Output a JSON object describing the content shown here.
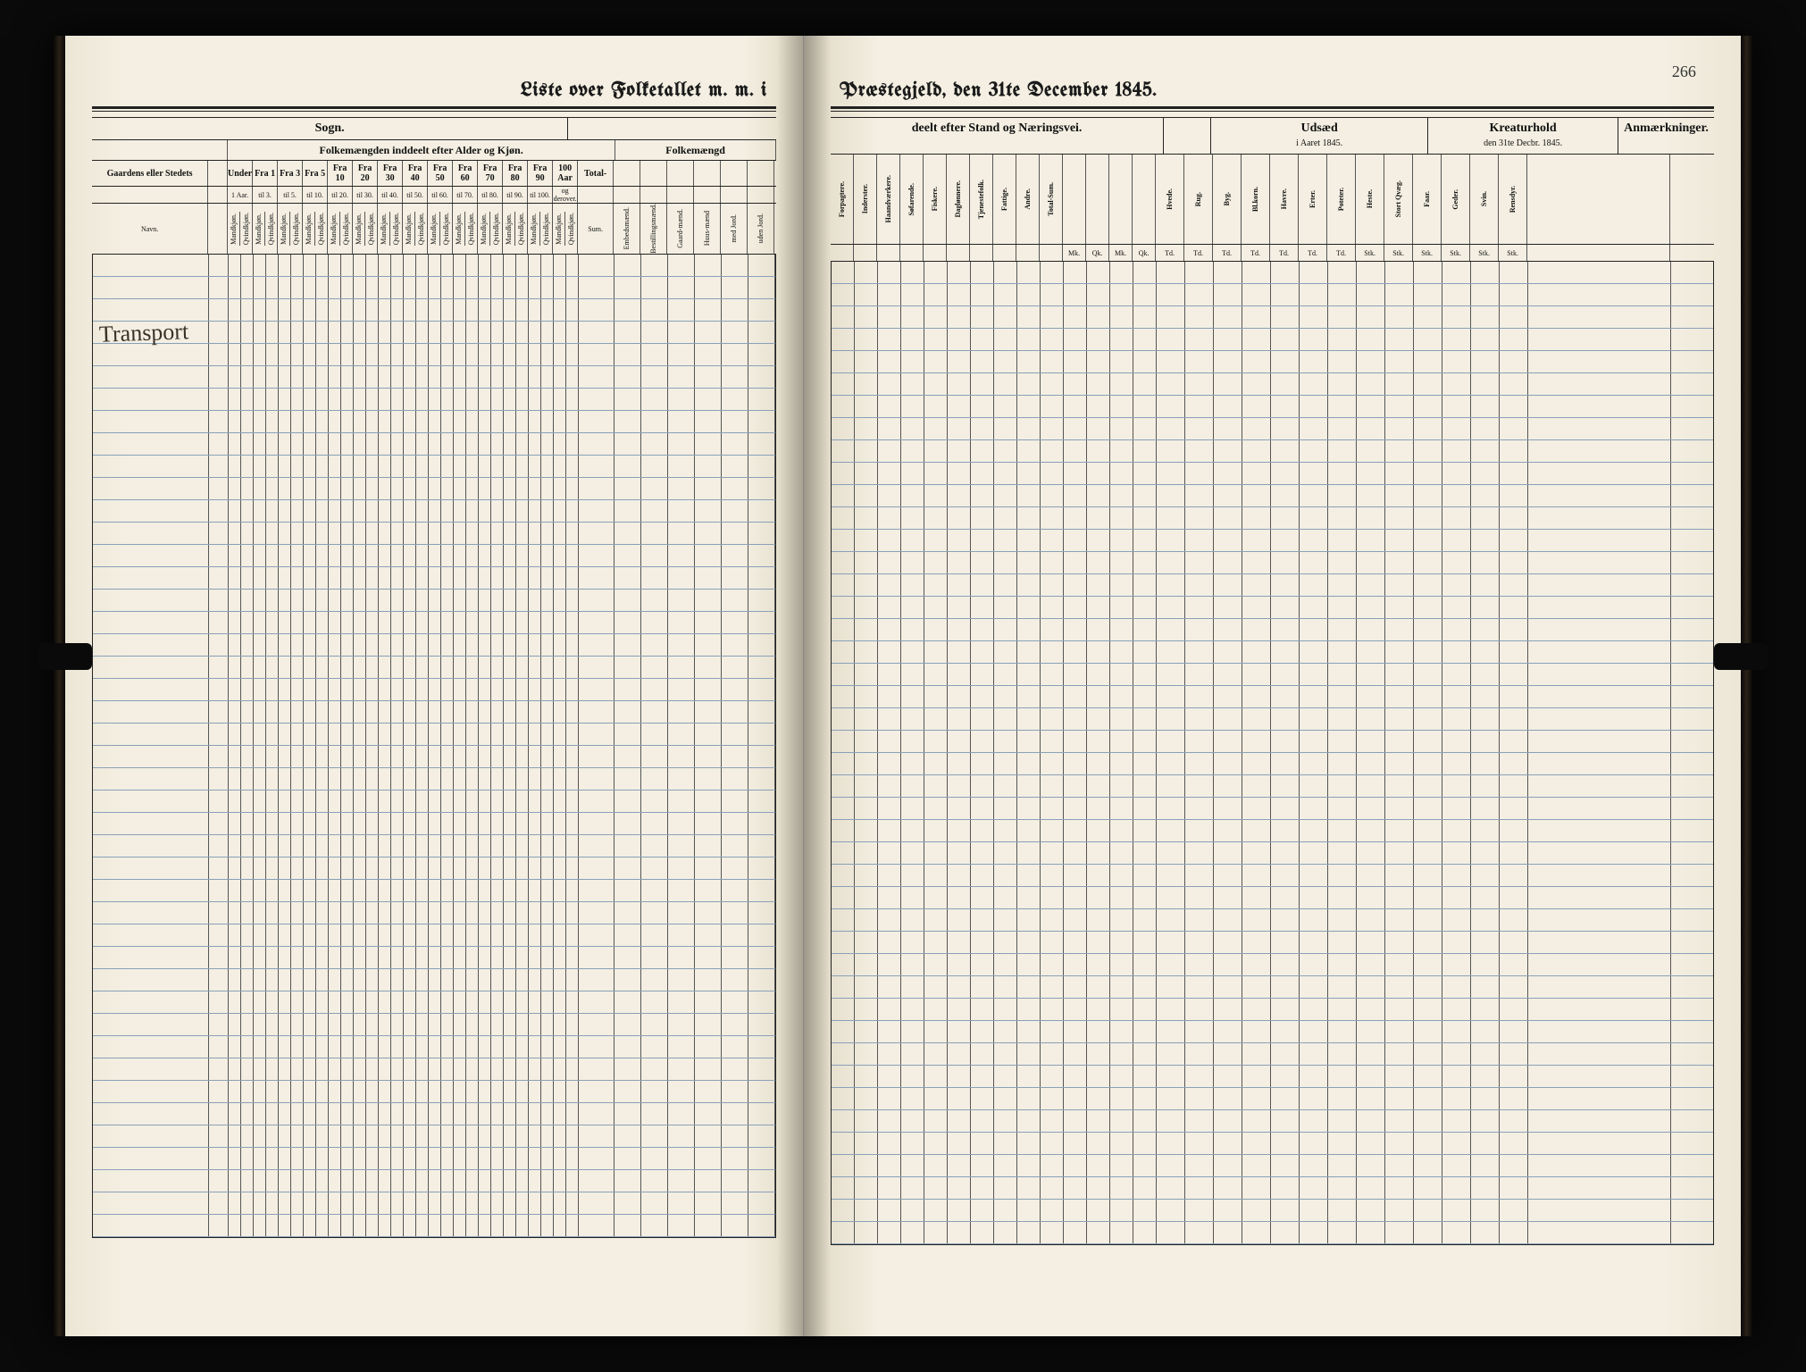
{
  "page_number": "266",
  "title_left": "Liste over Folketallet m. m. i",
  "title_right": "Præstegjeld, den 31te December 1845.",
  "left": {
    "section_sogn": "Sogn.",
    "section_folke_left": "Folkemængden inddeelt efter Alder og Kjøn.",
    "section_folke_right": "Folkemængd",
    "col_gaard": "Gaardens eller Stedets",
    "col_navn": "Navn.",
    "age_groups": [
      {
        "top": "Under",
        "mid": "1 Aar."
      },
      {
        "top": "Fra 1",
        "mid": "til 3."
      },
      {
        "top": "Fra 3",
        "mid": "til 5."
      },
      {
        "top": "Fra 5",
        "mid": "til 10."
      },
      {
        "top": "Fra 10",
        "mid": "til 20."
      },
      {
        "top": "Fra 20",
        "mid": "til 30."
      },
      {
        "top": "Fra 30",
        "mid": "til 40."
      },
      {
        "top": "Fra 40",
        "mid": "til 50."
      },
      {
        "top": "Fra 50",
        "mid": "til 60."
      },
      {
        "top": "Fra 60",
        "mid": "til 70."
      },
      {
        "top": "Fra 70",
        "mid": "til 80."
      },
      {
        "top": "Fra 80",
        "mid": "til 90."
      },
      {
        "top": "Fra 90",
        "mid": "til 100."
      },
      {
        "top": "100 Aar",
        "mid": "og derover."
      }
    ],
    "sub_m": "Mandkjøn.",
    "sub_q": "Qvindkjøn.",
    "total": "Total-",
    "sum": "Sum.",
    "right_cols": [
      "Embedsmænd.",
      "Bestillingsmænd.",
      "Gaard-mænd.",
      "Huus-mænd",
      "med Jord.",
      "uden Jord."
    ],
    "handwriting": "Transport"
  },
  "right": {
    "section_stand": "deelt efter Stand og Næringsvei.",
    "section_udsaed": "Udsæd",
    "section_udsaed_sub": "i Aaret 1845.",
    "section_kreatur": "Kreaturhold",
    "section_kreatur_sub": "den 31te Decbr. 1845.",
    "section_anm": "Anmærkninger.",
    "stand_cols": [
      "Forpagtere.",
      "Inderster.",
      "Haandværkere.",
      "Søfarende.",
      "Fiskere.",
      "Daglønnere.",
      "Tjenestefolk.",
      "Fattige.",
      "Andre.",
      "Total-Sum."
    ],
    "sum_cols": [
      "Mk.",
      "Qk.",
      "Mk.",
      "Qk."
    ],
    "udsaed_cols": [
      "Hvede.",
      "Rug.",
      "Byg.",
      "Bl.korn.",
      "Havre.",
      "Erter.",
      "Poteter."
    ],
    "udsaed_unit": "Td.",
    "kreatur_cols": [
      "Heste.",
      "Stort Qvæg.",
      "Faar.",
      "Geder.",
      "Svin.",
      "Rensdyr."
    ],
    "kreatur_unit": "Stk."
  },
  "layout": {
    "rows": 44,
    "left_name_w": 130,
    "left_no_w": 22,
    "left_age_pair_w": 28,
    "left_total_w": 40,
    "left_right_col_w": 30,
    "right_stand_w": 26,
    "right_sum_w": 26,
    "right_udsaed_w": 32,
    "right_kreatur_w": 32,
    "right_anm_w": 160
  },
  "colors": {
    "ink": "#1a1a1a",
    "rule_blue": "#8aa0b8",
    "paper": "#f4efe2"
  }
}
